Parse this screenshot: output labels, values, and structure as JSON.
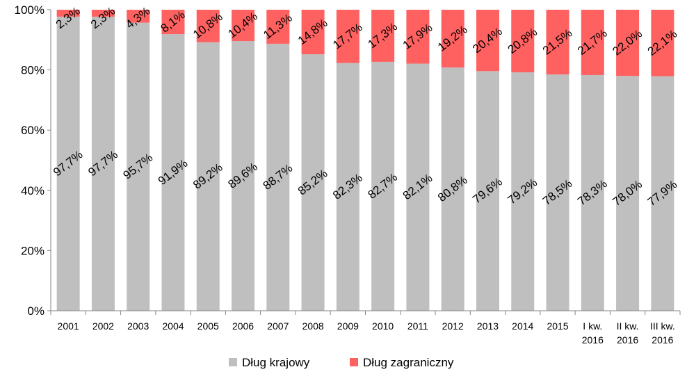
{
  "chart_data": {
    "type": "bar",
    "stacked": true,
    "percent_stacked": true,
    "categories": [
      [
        "2001"
      ],
      [
        "2002"
      ],
      [
        "2003"
      ],
      [
        "2004"
      ],
      [
        "2005"
      ],
      [
        "2006"
      ],
      [
        "2007"
      ],
      [
        "2008"
      ],
      [
        "2009"
      ],
      [
        "2010"
      ],
      [
        "2011"
      ],
      [
        "2012"
      ],
      [
        "2013"
      ],
      [
        "2014"
      ],
      [
        "2015"
      ],
      [
        "I kw.",
        "2016"
      ],
      [
        "II kw.",
        "2016"
      ],
      [
        "III kw.",
        "2016"
      ]
    ],
    "series": [
      {
        "name": "Dług krajowy",
        "color": "#bfbfbf",
        "values": [
          97.7,
          97.7,
          95.7,
          91.9,
          89.2,
          89.6,
          88.7,
          85.2,
          82.3,
          82.7,
          82.1,
          80.8,
          79.6,
          79.2,
          78.5,
          78.3,
          78.0,
          77.9
        ],
        "labels": [
          "97,7%",
          "97,7%",
          "95,7%",
          "91,9%",
          "89,2%",
          "89,6%",
          "88,7%",
          "85,2%",
          "82,3%",
          "82,7%",
          "82,1%",
          "80,8%",
          "79,6%",
          "79,2%",
          "78,5%",
          "78,3%",
          "78,0%",
          "77,9%"
        ]
      },
      {
        "name": "Dług zagraniczny",
        "color": "#ff6161",
        "values": [
          2.3,
          2.3,
          4.3,
          8.1,
          10.8,
          10.4,
          11.3,
          14.8,
          17.7,
          17.3,
          17.9,
          19.2,
          20.4,
          20.8,
          21.5,
          21.7,
          22.0,
          22.1
        ],
        "labels": [
          "2,3%",
          "2,3%",
          "4,3%",
          "8,1%",
          "10,8%",
          "10,4%",
          "11,3%",
          "14,8%",
          "17,7%",
          "17,3%",
          "17,9%",
          "19,2%",
          "20,4%",
          "20,8%",
          "21,5%",
          "21,7%",
          "22,0%",
          "22,1%"
        ]
      }
    ],
    "y_ticks": [
      "0%",
      "20%",
      "40%",
      "60%",
      "80%",
      "100%"
    ],
    "ylim": [
      0,
      100
    ],
    "legend_position": "bottom",
    "data_label_rotation": "diagonal",
    "title": "",
    "xlabel": "",
    "ylabel": ""
  }
}
